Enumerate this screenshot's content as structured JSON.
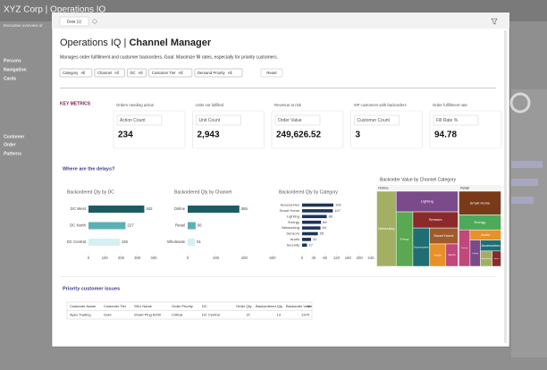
{
  "background": {
    "title": "XYZ Corp | Operations IQ",
    "subtitle": "Executive overview of",
    "nav": [
      "Persons",
      "Navigation",
      "Cards",
      "Customer",
      "Order",
      "Patterns"
    ]
  },
  "modal": {
    "tab": "Data (1)",
    "title": "Operations IQ | ",
    "title_bold": "Channel Manager",
    "subtitle": "Manages order fulfillment and customer backorders. Goal: Maximize fill rates, especially for priority customers.",
    "filters": [
      {
        "label": "Category",
        "value": "All"
      },
      {
        "label": "Channel",
        "value": "All"
      },
      {
        "label": "DC",
        "value": "All"
      },
      {
        "label": "Customer Tier",
        "value": "All"
      },
      {
        "label": "Demand Priority",
        "value": "All"
      }
    ],
    "reset": "Reset",
    "metrics_heading": "KEY METRICS",
    "cards": [
      {
        "caption": "Orders needing action",
        "label": "Action Count",
        "value": "234"
      },
      {
        "caption": "Units not fulfilled",
        "label": "Unit Count",
        "value": "2,943"
      },
      {
        "caption": "Revenue at risk",
        "label": "Order Value",
        "value": "249,626.52"
      },
      {
        "caption": "VIP customers with backorders",
        "label": "Customer Count",
        "value": "3"
      },
      {
        "caption": "Order fulfillment rate",
        "label": "Fill Rate %",
        "value": "94.78"
      }
    ],
    "section": "Where are the delays?",
    "charts": [
      {
        "type": "bar",
        "title": "Backordered Qty by DC",
        "categories": [
          "DC West",
          "DC North",
          "DC Central"
        ],
        "values": [
          342,
          227,
          192
        ],
        "colors": [
          "#1e5c62",
          "#5cb0b4",
          "#d4f0f2"
        ],
        "xlim": [
          0,
          400
        ],
        "xticks": [
          0,
          100,
          200,
          300,
          400
        ]
      },
      {
        "type": "bar",
        "title": "Backordered Qty by Channel",
        "categories": [
          "Online",
          "Retail",
          "Wholesale"
        ],
        "values": [
          365,
          56,
          51
        ],
        "colors": [
          "#1e5c62",
          "#5cb0b4",
          "#d4f0f2"
        ],
        "xlim": [
          0,
          600
        ],
        "xticks": [
          0,
          200,
          400,
          600
        ]
      },
      {
        "type": "bar",
        "title": "Backordered Qty by Category",
        "categories": [
          "Accessories",
          "Smart Home",
          "Lighting",
          "Energy",
          "Networking",
          "Sensors",
          "Audio",
          "Security"
        ],
        "values": [
          109,
          107,
          86,
          66,
          64,
          55,
          31,
          17
        ],
        "colors": [
          "#1d3557",
          "#1d3557",
          "#1d3557",
          "#1d3557",
          "#1d3557",
          "#1d3557",
          "#1d3557",
          "#1d3557"
        ],
        "xlim": [
          0,
          240
        ],
        "xticks": [
          0,
          40,
          80,
          120,
          160,
          200,
          240
        ]
      },
      {
        "type": "treemap",
        "title": "Backorder Value by Channel Category",
        "groups": [
          {
            "name": "Online",
            "cells": [
              {
                "name": "Networking",
                "value": 32,
                "color": "#a3b063"
              },
              {
                "name": "Lighting",
                "value": 28,
                "color": "#7b4a8a"
              },
              {
                "name": "Energy",
                "value": 20,
                "color": "#5aa84f"
              },
              {
                "name": "Sensors",
                "value": 16,
                "color": "#8b2a2a"
              },
              {
                "name": "Accessories",
                "value": 14,
                "color": "#1f6e73"
              },
              {
                "name": "Smart Home",
                "value": 10,
                "color": "#a05a2c"
              },
              {
                "name": "Audio",
                "value": 8,
                "color": "#e8902a"
              },
              {
                "name": "Security",
                "value": 6,
                "color": "#c0487a"
              }
            ]
          },
          {
            "name": "Retail",
            "cells": [
              {
                "name": "Smart Home",
                "value": 22,
                "color": "#7a3a1a"
              },
              {
                "name": "Energy",
                "value": 14,
                "color": "#4caa5a"
              },
              {
                "name": "Security",
                "value": 9,
                "color": "#c0487a"
              },
              {
                "name": "Audio",
                "value": 7,
                "color": "#e8902a"
              },
              {
                "name": "Lighting",
                "value": 6,
                "color": "#7b4a8a"
              },
              {
                "name": "Accessories",
                "value": 5,
                "color": "#1f6e73"
              },
              {
                "name": "Networking",
                "value": 4,
                "color": "#a3b063"
              },
              {
                "name": "Sensors",
                "value": 3,
                "color": "#8b2a2a"
              }
            ]
          }
        ]
      }
    ],
    "table_title": "Priority customer issues",
    "table": {
      "columns": [
        "Customer Name",
        "Customer Tier",
        "SKU Name",
        "Order Priority",
        "DC",
        "Order Qty",
        "Backordered Qty",
        "Backorder Value"
      ],
      "rows": [
        [
          "Apex Trading",
          "Gold",
          "Smart Plug A200",
          "Critical",
          "DC Central",
          "37",
          "13",
          "1379"
        ]
      ]
    }
  }
}
